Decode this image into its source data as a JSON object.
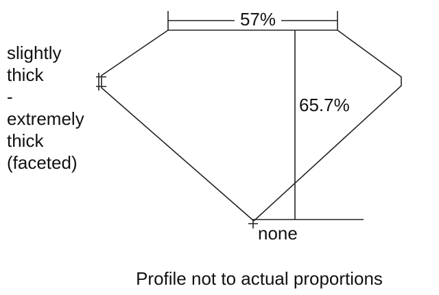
{
  "labels": {
    "table": "57%",
    "depth": "65.7%",
    "girdle": [
      "slightly",
      "thick",
      "-",
      "extremely",
      "thick",
      "(faceted)"
    ],
    "culet": "none"
  },
  "note": "Profile not to actual proportions"
}
